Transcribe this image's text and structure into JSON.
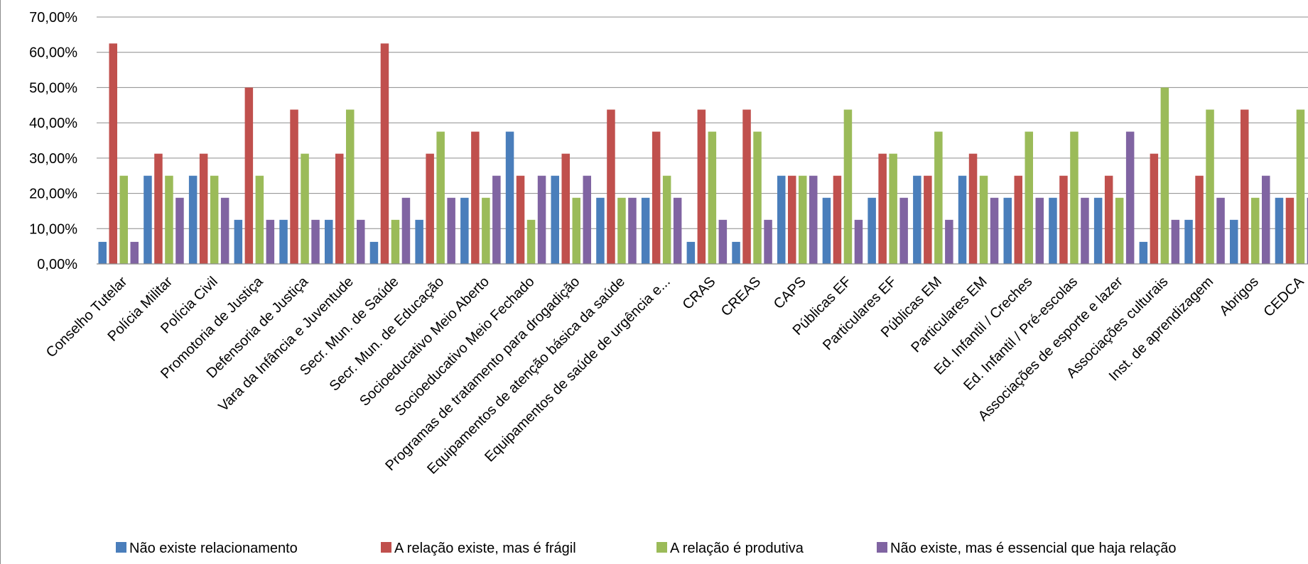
{
  "chart_data": {
    "type": "bar",
    "title": "",
    "xlabel": "",
    "ylabel": "",
    "ylim": [
      0,
      70
    ],
    "yticks": [
      "0,00%",
      "10,00%",
      "20,00%",
      "30,00%",
      "40,00%",
      "50,00%",
      "60,00%",
      "70,00%"
    ],
    "grid": true,
    "legend_position": "bottom",
    "categories": [
      "Conselho Tutelar",
      "Polícia Militar",
      "Polícia Civil",
      "Promotoria de Justiça",
      "Defensoria de Justiça",
      "Vara da Infância e Juventude",
      "Secr. Mun. de Saúde",
      "Secr. Mun. de Educação",
      "Socioeducativo Meio Aberto",
      "Socioeducativo Meio Fechado",
      "Programas de tratamento para drogadição",
      "Equipamentos de atenção básica da saúde",
      "Equipamentos de saúde de urgência e...",
      "CRAS",
      "CREAS",
      "CAPS",
      "Públicas EF",
      "Particulares EF",
      "Públicas EM",
      "Particulares EM",
      "Ed. Infantil / Creches",
      "Ed. Infantil / Pré-escolas",
      "Associações de esporte e lazer",
      "Associações culturais",
      "Inst. de aprendizagem",
      "Abrigos",
      "CEDCA"
    ],
    "series": [
      {
        "name": "Não existe relacionamento",
        "color": "#4a7ebb",
        "values": [
          6.25,
          25,
          25,
          12.5,
          12.5,
          12.5,
          6.25,
          12.5,
          18.75,
          37.5,
          25,
          18.75,
          18.75,
          6.25,
          6.25,
          25,
          18.75,
          18.75,
          25,
          25,
          18.75,
          18.75,
          18.75,
          6.25,
          12.5,
          12.5,
          18.75
        ]
      },
      {
        "name": "A relação existe, mas é frágil",
        "color": "#c0504d",
        "values": [
          62.5,
          31.25,
          31.25,
          50,
          43.75,
          31.25,
          62.5,
          31.25,
          37.5,
          25,
          31.25,
          43.75,
          37.5,
          43.75,
          43.75,
          25,
          25,
          31.25,
          25,
          31.25,
          25,
          25,
          25,
          31.25,
          25,
          43.75,
          18.75
        ]
      },
      {
        "name": "A relação é produtiva",
        "color": "#9bbb59",
        "values": [
          25,
          25,
          25,
          25,
          31.25,
          43.75,
          12.5,
          37.5,
          18.75,
          12.5,
          18.75,
          18.75,
          25,
          37.5,
          37.5,
          25,
          43.75,
          31.25,
          37.5,
          25,
          37.5,
          37.5,
          18.75,
          50,
          43.75,
          18.75,
          43.75
        ]
      },
      {
        "name": "Não existe, mas é essencial que haja relação",
        "color": "#8064a2",
        "values": [
          6.25,
          18.75,
          18.75,
          12.5,
          12.5,
          12.5,
          18.75,
          18.75,
          25,
          25,
          25,
          18.75,
          18.75,
          12.5,
          12.5,
          25,
          12.5,
          18.75,
          12.5,
          18.75,
          18.75,
          18.75,
          37.5,
          12.5,
          18.75,
          25,
          18.75
        ]
      }
    ]
  }
}
